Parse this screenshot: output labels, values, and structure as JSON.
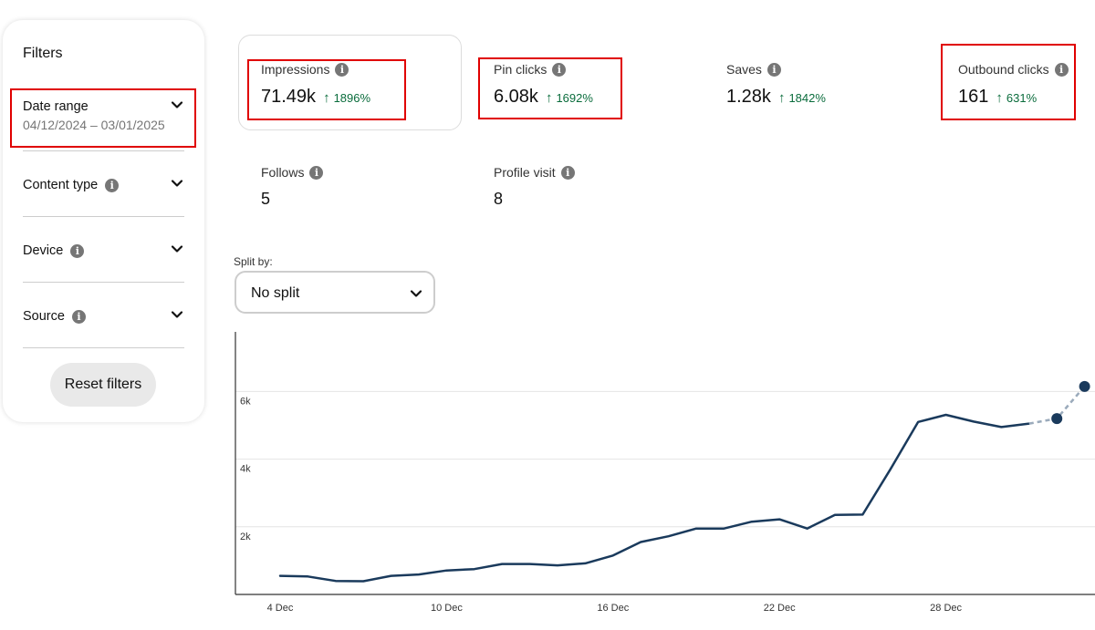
{
  "filters": {
    "title": "Filters",
    "date_range": {
      "label": "Date range",
      "value": "04/12/2024 – 03/01/2025"
    },
    "content_type": {
      "label": "Content type"
    },
    "device": {
      "label": "Device"
    },
    "source": {
      "label": "Source"
    },
    "reset_label": "Reset filters"
  },
  "metrics": {
    "impressions": {
      "label": "Impressions",
      "value": "71.49k",
      "change": "1896%"
    },
    "pin_clicks": {
      "label": "Pin clicks",
      "value": "6.08k",
      "change": "1692%"
    },
    "saves": {
      "label": "Saves",
      "value": "1.28k",
      "change": "1842%"
    },
    "outbound_clicks": {
      "label": "Outbound clicks",
      "value": "161",
      "change": "631%"
    },
    "follows": {
      "label": "Follows",
      "value": "5"
    },
    "profile_visit": {
      "label": "Profile visit",
      "value": "8"
    }
  },
  "icons": {
    "info": "i",
    "arrow_up": "↑"
  },
  "split": {
    "label": "Split by:",
    "value": "No split"
  },
  "colors": {
    "positive": "#0a6c3c",
    "line": "#1a3a5c",
    "highlight_box": "#e00000"
  },
  "chart_data": {
    "type": "line",
    "x_ticks": [
      "4 Dec",
      "10 Dec",
      "16 Dec",
      "22 Dec",
      "28 Dec"
    ],
    "y_ticks": [
      "2k",
      "4k",
      "6k"
    ],
    "ylim": [
      0,
      7800
    ],
    "x_days": [
      4,
      5,
      6,
      7,
      8,
      9,
      10,
      11,
      12,
      13,
      14,
      15,
      16,
      17,
      18,
      19,
      20,
      21,
      22,
      23,
      24,
      25,
      26,
      27,
      28,
      29,
      30,
      31,
      32,
      33
    ],
    "values": [
      550,
      530,
      400,
      390,
      550,
      590,
      710,
      750,
      900,
      900,
      860,
      920,
      1150,
      1550,
      1720,
      1950,
      1950,
      2150,
      2220,
      1950,
      2350,
      2360,
      3700,
      5100,
      5310,
      5110,
      4950,
      5050,
      5200,
      6150
    ],
    "projected_from_index": 28,
    "markers_at_indices": [
      28,
      29
    ]
  }
}
